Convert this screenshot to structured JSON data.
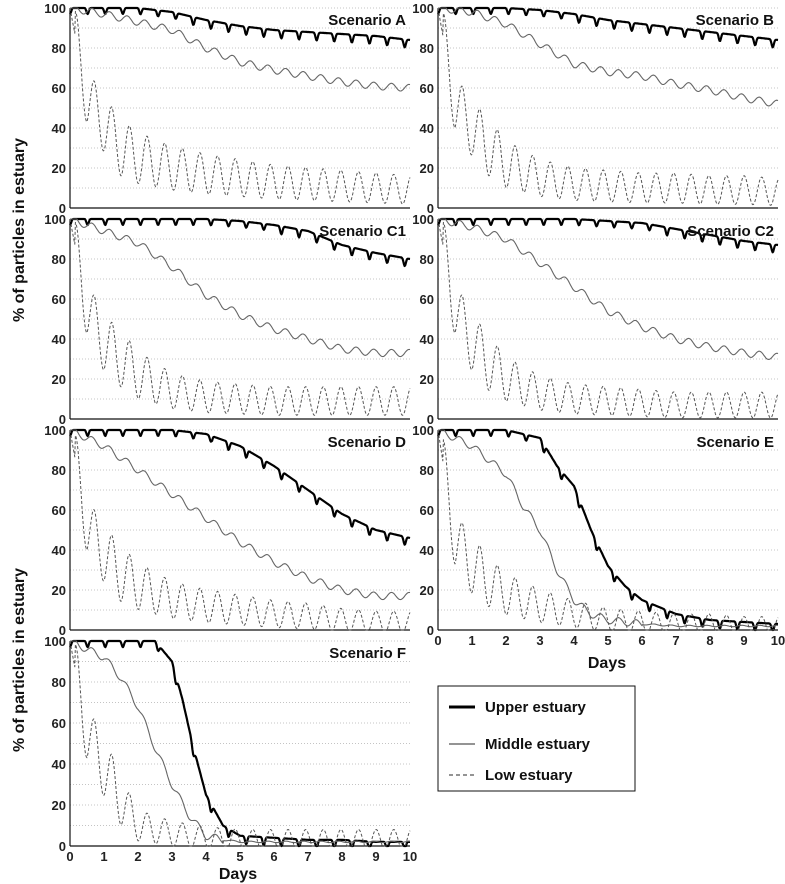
{
  "figure": {
    "ylabel": "% of particles in estuary",
    "xlabel": "Days"
  },
  "legend": {
    "items": [
      {
        "label": "Upper estuary",
        "style": "thick"
      },
      {
        "label": "Middle estuary",
        "style": "thin"
      },
      {
        "label": "Low estuary",
        "style": "dashed"
      }
    ]
  },
  "chart_data": [
    {
      "type": "line",
      "title": "Scenario A",
      "xlim": [
        0,
        10
      ],
      "ylim": [
        0,
        100
      ],
      "xticks": [
        "0",
        "1",
        "2",
        "3",
        "4",
        "5",
        "6",
        "7",
        "8",
        "9",
        "10"
      ],
      "yticks": [
        "0",
        "20",
        "40",
        "60",
        "80",
        "100"
      ],
      "grid": "horizontal dotted",
      "series": [
        {
          "name": "Upper estuary",
          "x": [
            0,
            1,
            2,
            3,
            4,
            5,
            6,
            7,
            8,
            9,
            10
          ],
          "values": [
            100,
            100,
            100,
            98,
            94,
            91,
            89,
            88,
            87,
            86,
            84
          ]
        },
        {
          "name": "Middle estuary",
          "x": [
            0,
            1,
            2,
            3,
            4,
            5,
            6,
            7,
            8,
            9,
            10
          ],
          "values": [
            100,
            97,
            93,
            89,
            80,
            73,
            69,
            66,
            63,
            61,
            60
          ]
        },
        {
          "name": "Low estuary",
          "x": [
            0,
            0.5,
            1,
            1.5,
            2,
            3,
            4,
            5,
            6,
            7,
            8,
            9,
            10
          ],
          "values": [
            100,
            55,
            42,
            30,
            25,
            20,
            17,
            15,
            13,
            12,
            11,
            10,
            9
          ]
        }
      ]
    },
    {
      "type": "line",
      "title": "Scenario B",
      "xlim": [
        0,
        10
      ],
      "ylim": [
        0,
        100
      ],
      "xticks": [
        "0",
        "1",
        "2",
        "3",
        "4",
        "5",
        "6",
        "7",
        "8",
        "9",
        "10"
      ],
      "yticks": [
        "0",
        "20",
        "40",
        "60",
        "80",
        "100"
      ],
      "grid": "horizontal dotted",
      "series": [
        {
          "name": "Upper estuary",
          "x": [
            0,
            1,
            2,
            3,
            4,
            5,
            6,
            7,
            8,
            9,
            10
          ],
          "values": [
            100,
            100,
            100,
            99,
            97,
            94,
            92,
            90,
            88,
            86,
            84
          ]
        },
        {
          "name": "Middle estuary",
          "x": [
            0,
            1,
            2,
            3,
            4,
            5,
            6,
            7,
            8,
            9,
            10
          ],
          "values": [
            100,
            98,
            92,
            82,
            72,
            68,
            66,
            62,
            59,
            55,
            52
          ]
        },
        {
          "name": "Low estuary",
          "x": [
            0,
            0.5,
            1,
            1.5,
            2,
            3,
            4,
            5,
            6,
            7,
            8,
            9,
            10
          ],
          "values": [
            100,
            52,
            40,
            30,
            22,
            15,
            12,
            11,
            10,
            10,
            9,
            9,
            8
          ]
        }
      ]
    },
    {
      "type": "line",
      "title": "Scenario C1",
      "xlim": [
        0,
        10
      ],
      "ylim": [
        0,
        100
      ],
      "xticks": [
        "0",
        "1",
        "2",
        "3",
        "4",
        "5",
        "6",
        "7",
        "8",
        "9",
        "10"
      ],
      "yticks": [
        "0",
        "20",
        "40",
        "60",
        "80",
        "100"
      ],
      "grid": "horizontal dotted",
      "series": [
        {
          "name": "Upper estuary",
          "x": [
            0,
            1,
            2,
            3,
            4,
            5,
            6,
            7,
            8,
            9,
            10
          ],
          "values": [
            100,
            100,
            100,
            100,
            100,
            99,
            97,
            94,
            87,
            83,
            80
          ]
        },
        {
          "name": "Middle estuary",
          "x": [
            0,
            1,
            2,
            3,
            4,
            5,
            6,
            7,
            8,
            9,
            10
          ],
          "values": [
            100,
            94,
            88,
            76,
            62,
            52,
            45,
            40,
            35,
            33,
            33
          ]
        },
        {
          "name": "Low estuary",
          "x": [
            0,
            0.5,
            1,
            1.5,
            2,
            3,
            4,
            5,
            6,
            7,
            8,
            9,
            10
          ],
          "values": [
            100,
            55,
            38,
            30,
            22,
            14,
            11,
            10,
            9,
            9,
            9,
            9,
            9
          ]
        }
      ]
    },
    {
      "type": "line",
      "title": "Scenario C2",
      "xlim": [
        0,
        10
      ],
      "ylim": [
        0,
        100
      ],
      "xticks": [
        "0",
        "1",
        "2",
        "3",
        "4",
        "5",
        "6",
        "7",
        "8",
        "9",
        "10"
      ],
      "yticks": [
        "0",
        "20",
        "40",
        "60",
        "80",
        "100"
      ],
      "grid": "horizontal dotted",
      "series": [
        {
          "name": "Upper estuary",
          "x": [
            0,
            1,
            2,
            3,
            4,
            5,
            6,
            7,
            8,
            9,
            10
          ],
          "values": [
            100,
            100,
            100,
            100,
            100,
            99,
            98,
            95,
            92,
            89,
            87
          ]
        },
        {
          "name": "Middle estuary",
          "x": [
            0,
            1,
            2,
            3,
            4,
            5,
            6,
            7,
            8,
            9,
            10
          ],
          "values": [
            100,
            96,
            90,
            78,
            66,
            54,
            46,
            40,
            36,
            33,
            31
          ]
        },
        {
          "name": "Low estuary",
          "x": [
            0,
            0.5,
            1,
            1.5,
            2,
            3,
            4,
            5,
            6,
            7,
            8,
            9,
            10
          ],
          "values": [
            100,
            55,
            38,
            28,
            20,
            13,
            10,
            9,
            8,
            7,
            7,
            7,
            7
          ]
        }
      ]
    },
    {
      "type": "line",
      "title": "Scenario D",
      "xlim": [
        0,
        10
      ],
      "ylim": [
        0,
        100
      ],
      "xticks": [
        "0",
        "1",
        "2",
        "3",
        "4",
        "5",
        "6",
        "7",
        "8",
        "9",
        "10"
      ],
      "yticks": [
        "0",
        "20",
        "40",
        "60",
        "80",
        "100"
      ],
      "grid": "horizontal dotted",
      "series": [
        {
          "name": "Upper estuary",
          "x": [
            0,
            1,
            2,
            3,
            4,
            5,
            6,
            7,
            8,
            9,
            10
          ],
          "values": [
            100,
            100,
            100,
            100,
            98,
            92,
            82,
            70,
            58,
            50,
            46
          ]
        },
        {
          "name": "Middle estuary",
          "x": [
            0,
            1,
            2,
            3,
            4,
            5,
            6,
            7,
            8,
            9,
            10
          ],
          "values": [
            100,
            92,
            80,
            68,
            56,
            44,
            34,
            26,
            20,
            17,
            17
          ]
        },
        {
          "name": "Low estuary",
          "x": [
            0,
            0.5,
            1,
            1.5,
            2,
            3,
            4,
            5,
            6,
            7,
            8,
            9,
            10
          ],
          "values": [
            100,
            52,
            38,
            28,
            22,
            15,
            12,
            10,
            8,
            7,
            5,
            4,
            4
          ]
        }
      ]
    },
    {
      "type": "line",
      "title": "Scenario E",
      "xlim": [
        0,
        10
      ],
      "ylim": [
        0,
        100
      ],
      "xticks": [
        "0",
        "1",
        "2",
        "3",
        "4",
        "5",
        "6",
        "7",
        "8",
        "9",
        "10"
      ],
      "yticks": [
        "0",
        "20",
        "40",
        "60",
        "80",
        "100"
      ],
      "grid": "horizontal dotted",
      "series": [
        {
          "name": "Upper estuary",
          "x": [
            0,
            1,
            2,
            3,
            3.5,
            4,
            4.5,
            5,
            5.5,
            6,
            7,
            8,
            9,
            10
          ],
          "values": [
            100,
            100,
            100,
            96,
            82,
            72,
            50,
            32,
            22,
            15,
            8,
            5,
            4,
            3
          ]
        },
        {
          "name": "Middle estuary",
          "x": [
            0,
            1,
            2,
            2.5,
            3,
            3.5,
            4,
            4.5,
            5,
            6,
            7,
            8,
            9,
            10
          ],
          "values": [
            100,
            92,
            78,
            62,
            50,
            30,
            15,
            8,
            5,
            3,
            2,
            2,
            2,
            2
          ]
        },
        {
          "name": "Low estuary",
          "x": [
            0,
            0.5,
            1,
            1.5,
            2,
            3,
            4,
            5,
            6,
            7,
            8,
            9,
            10
          ],
          "values": [
            100,
            45,
            32,
            24,
            18,
            12,
            8,
            5,
            4,
            3,
            3,
            2,
            2
          ]
        }
      ]
    },
    {
      "type": "line",
      "title": "Scenario F",
      "xlim": [
        0,
        10
      ],
      "ylim": [
        0,
        100
      ],
      "xticks": [
        "0",
        "1",
        "2",
        "3",
        "4",
        "5",
        "6",
        "7",
        "8",
        "9",
        "10"
      ],
      "yticks": [
        "0",
        "20",
        "40",
        "60",
        "80",
        "100"
      ],
      "grid": "horizontal dotted",
      "series": [
        {
          "name": "Upper estuary",
          "x": [
            0,
            1,
            2,
            2.5,
            3,
            3.3,
            3.6,
            4,
            4.5,
            5,
            6,
            7,
            8,
            9,
            10
          ],
          "values": [
            100,
            100,
            100,
            100,
            90,
            72,
            50,
            25,
            10,
            5,
            4,
            3,
            3,
            2,
            2
          ]
        },
        {
          "name": "Middle estuary",
          "x": [
            0,
            1,
            1.5,
            2,
            2.5,
            3,
            3.5,
            4,
            4.5,
            5,
            6,
            7,
            8,
            9,
            10
          ],
          "values": [
            100,
            92,
            82,
            68,
            48,
            30,
            15,
            5,
            3,
            2,
            2,
            2,
            2,
            2,
            2
          ]
        },
        {
          "name": "Low estuary",
          "x": [
            0,
            0.5,
            1,
            1.5,
            2,
            2.5,
            3,
            3.5,
            4,
            5,
            6,
            7,
            8,
            9,
            10
          ],
          "values": [
            100,
            55,
            38,
            22,
            10,
            8,
            6,
            5,
            4,
            3,
            3,
            3,
            3,
            3,
            3
          ]
        }
      ]
    }
  ]
}
